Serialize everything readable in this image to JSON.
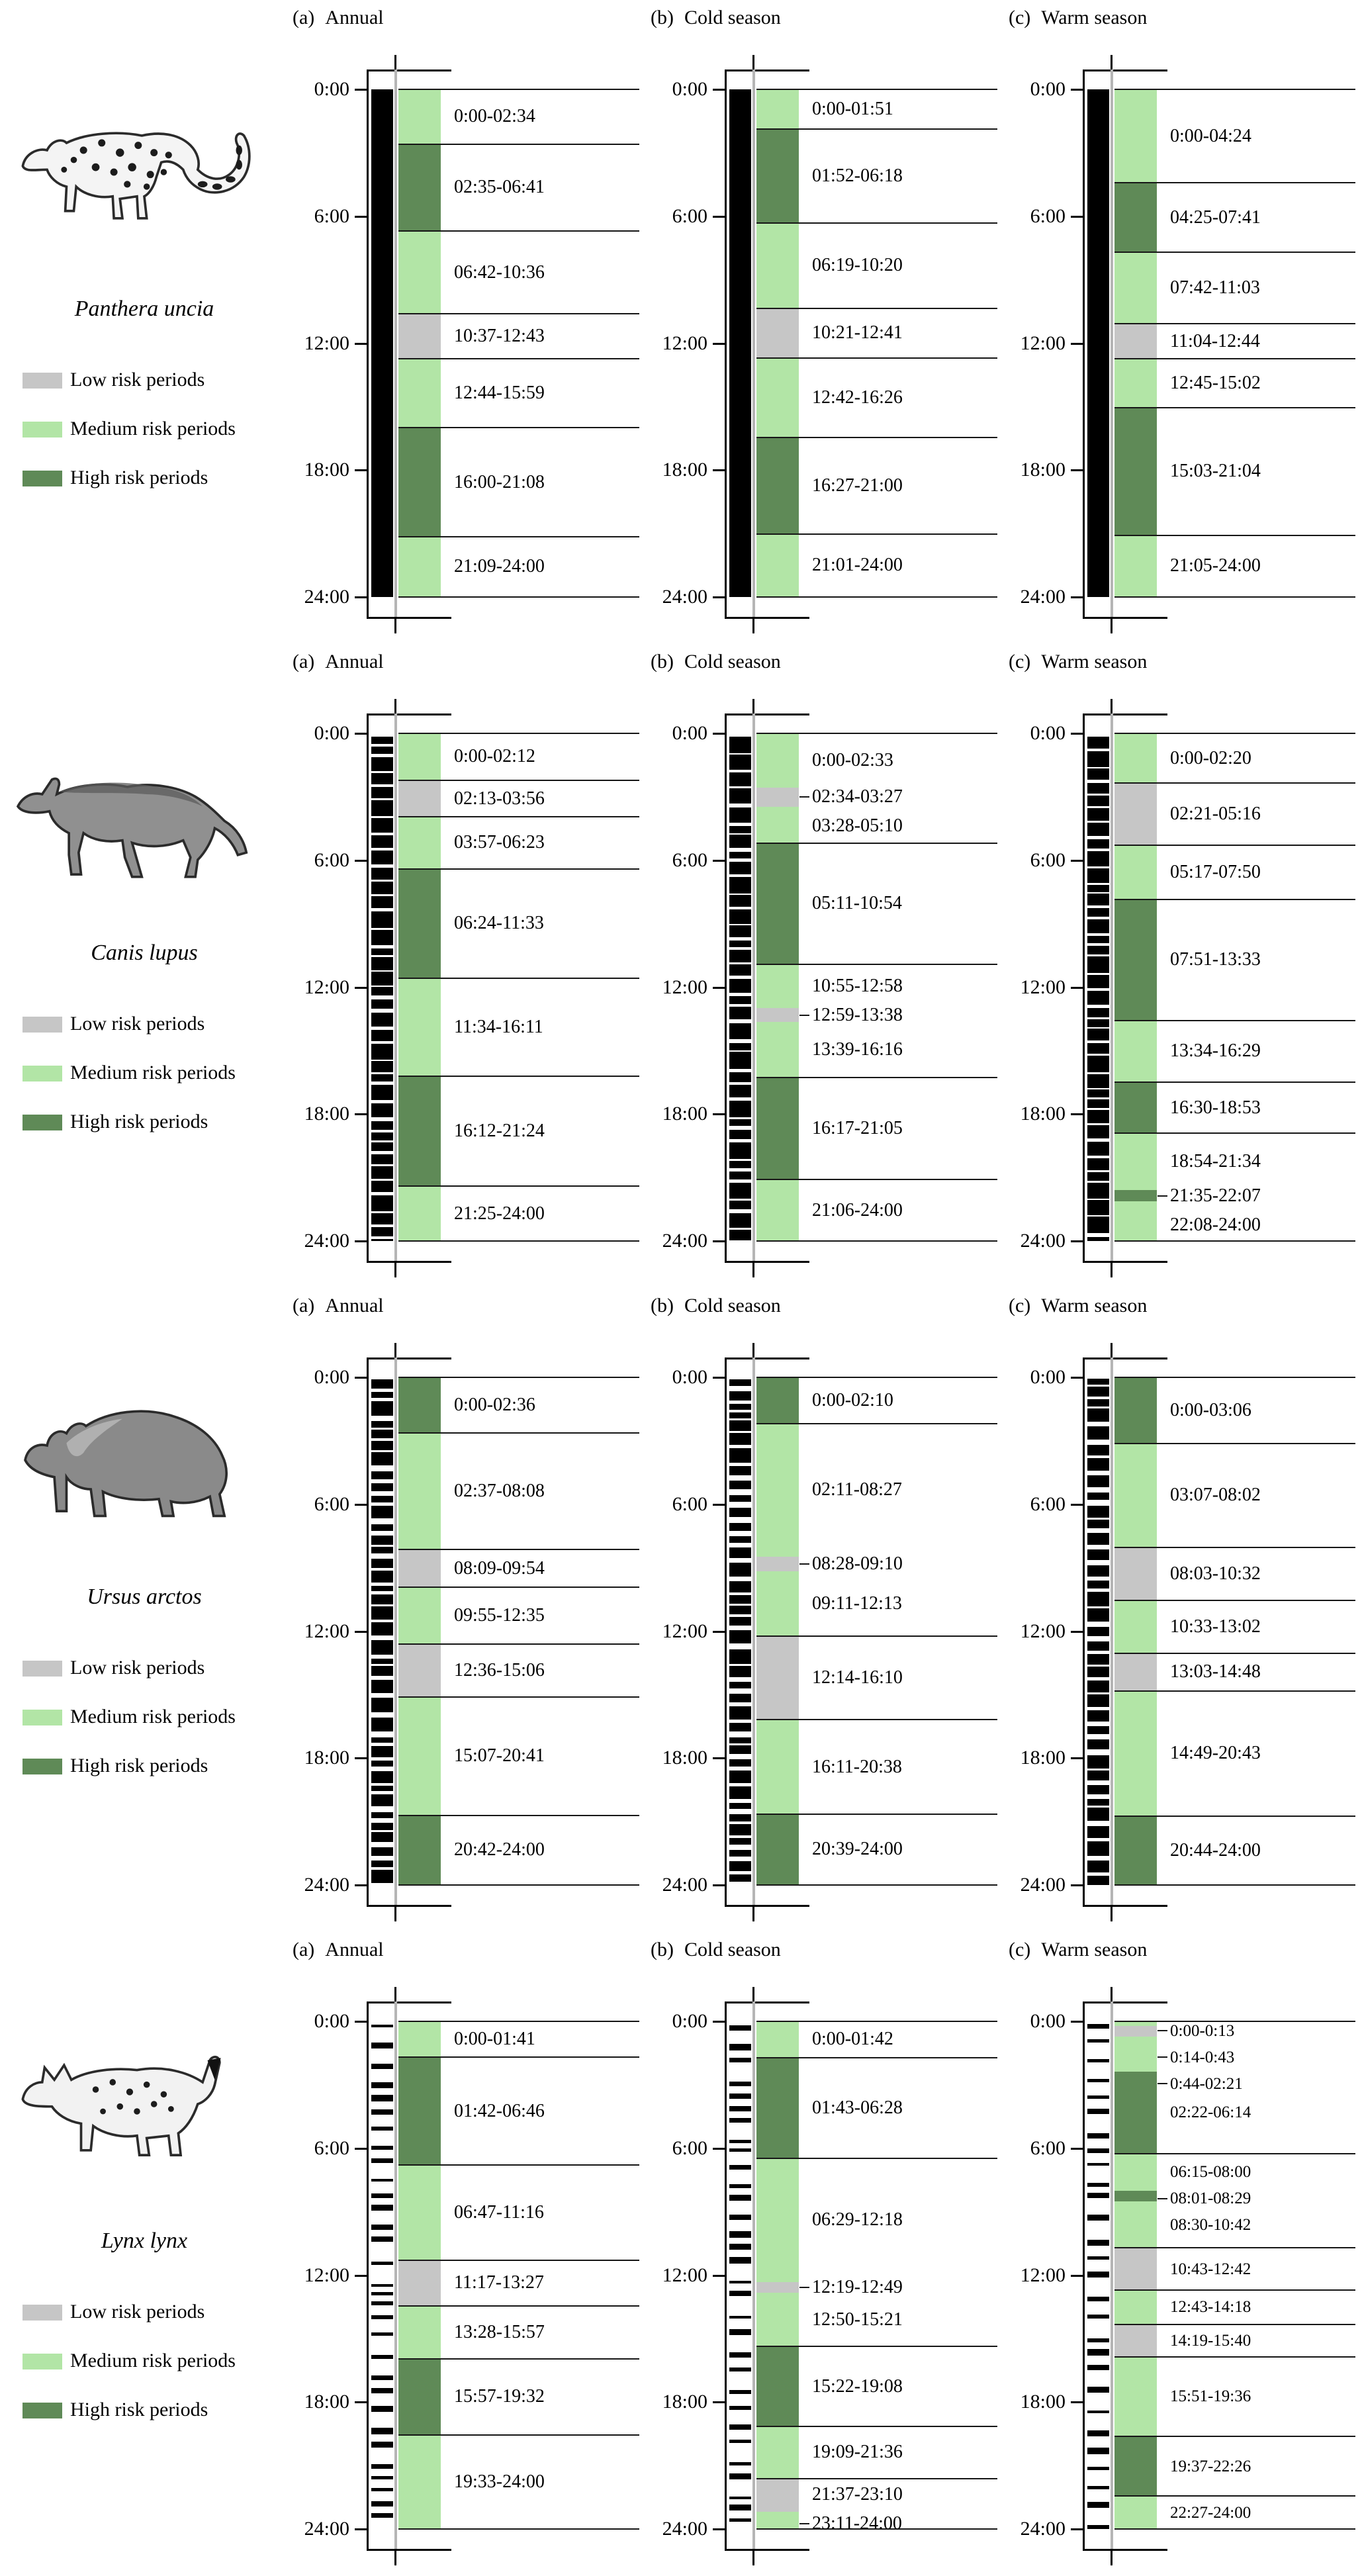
{
  "figure": {
    "background": "#ffffff",
    "text_color": "#000000"
  },
  "legend": {
    "low_label": "Low risk periods",
    "medium_label": "Medium risk periods",
    "high_label": "High risk periods"
  },
  "chart_data": {
    "type": "timeline-risk-bands",
    "time_axis": {
      "range_hours": [
        0,
        24
      ],
      "tick_labels": [
        "0:00",
        "6:00",
        "12:00",
        "18:00",
        "24:00"
      ],
      "tick_hours": [
        0,
        6,
        12,
        18,
        24
      ]
    },
    "risk_levels": [
      {
        "key": "low",
        "label": "Low risk periods",
        "color": "#c6c6c6"
      },
      {
        "key": "medium",
        "label": "Medium risk periods",
        "color": "#b2e5a6"
      },
      {
        "key": "high",
        "label": "High risk periods",
        "color": "#5f8a57"
      }
    ],
    "activity_bar_color": "#000000",
    "species": [
      {
        "name": "Panthera uncia",
        "illustration": "snow-leopard",
        "activity_pattern": {
          "style": "solid",
          "seed": 3
        },
        "panels": [
          {
            "index_label": "(a)",
            "season": "Annual",
            "segments": [
              {
                "label": "0:00-02:34",
                "risk": "medium"
              },
              {
                "label": "02:35-06:41",
                "risk": "high"
              },
              {
                "label": "06:42-10:36",
                "risk": "medium"
              },
              {
                "label": "10:37-12:43",
                "risk": "low"
              },
              {
                "label": "12:44-15:59",
                "risk": "medium"
              },
              {
                "label": "16:00-21:08",
                "risk": "high"
              },
              {
                "label": "21:09-24:00",
                "risk": "medium"
              }
            ]
          },
          {
            "index_label": "(b)",
            "season": "Cold season",
            "segments": [
              {
                "label": "0:00-01:51",
                "risk": "medium"
              },
              {
                "label": "01:52-06:18",
                "risk": "high"
              },
              {
                "label": "06:19-10:20",
                "risk": "medium"
              },
              {
                "label": "10:21-12:41",
                "risk": "low"
              },
              {
                "label": "12:42-16:26",
                "risk": "medium"
              },
              {
                "label": "16:27-21:00",
                "risk": "high"
              },
              {
                "label": "21:01-24:00",
                "risk": "medium"
              }
            ]
          },
          {
            "index_label": "(c)",
            "season": "Warm season",
            "segments": [
              {
                "label": "0:00-04:24",
                "risk": "medium"
              },
              {
                "label": "04:25-07:41",
                "risk": "high"
              },
              {
                "label": "07:42-11:03",
                "risk": "medium"
              },
              {
                "label": "11:04-12:44",
                "risk": "low"
              },
              {
                "label": "12:45-15:02",
                "risk": "medium"
              },
              {
                "label": "15:03-21:04",
                "risk": "high"
              },
              {
                "label": "21:05-24:00",
                "risk": "medium"
              }
            ]
          }
        ]
      },
      {
        "name": "Canis lupus",
        "illustration": "gray-wolf",
        "activity_pattern": {
          "style": "bars",
          "seed": 7,
          "bar": [
            10,
            26
          ],
          "gap": [
            2,
            6
          ]
        },
        "panels": [
          {
            "index_label": "(a)",
            "season": "Annual",
            "segments": [
              {
                "label": "0:00-02:12",
                "risk": "medium"
              },
              {
                "label": "02:13-03:56",
                "risk": "low"
              },
              {
                "label": "03:57-06:23",
                "risk": "medium"
              },
              {
                "label": "06:24-11:33",
                "risk": "high"
              },
              {
                "label": "11:34-16:11",
                "risk": "medium"
              },
              {
                "label": "16:12-21:24",
                "risk": "high"
              },
              {
                "label": "21:25-24:00",
                "risk": "medium"
              }
            ]
          },
          {
            "index_label": "(b)",
            "season": "Cold season",
            "segments": [
              {
                "label": "0:00-02:33",
                "risk": "medium"
              },
              {
                "label": "02:34-03:27",
                "risk": "low"
              },
              {
                "label": "03:28-05:10",
                "risk": "medium"
              },
              {
                "label": "05:11-10:54",
                "risk": "high"
              },
              {
                "label": "10:55-12:58",
                "risk": "medium"
              },
              {
                "label": "12:59-13:38",
                "risk": "low"
              },
              {
                "label": "13:39-16:16",
                "risk": "medium"
              },
              {
                "label": "16:17-21:05",
                "risk": "high"
              },
              {
                "label": "21:06-24:00",
                "risk": "medium"
              }
            ]
          },
          {
            "index_label": "(c)",
            "season": "Warm season",
            "segments": [
              {
                "label": "0:00-02:20",
                "risk": "medium"
              },
              {
                "label": "02:21-05:16",
                "risk": "low"
              },
              {
                "label": "05:17-07:50",
                "risk": "medium"
              },
              {
                "label": "07:51-13:33",
                "risk": "high"
              },
              {
                "label": "13:34-16:29",
                "risk": "medium"
              },
              {
                "label": "16:30-18:53",
                "risk": "high"
              },
              {
                "label": "18:54-21:34",
                "risk": "medium"
              },
              {
                "label": "21:35-22:07",
                "risk": "high"
              },
              {
                "label": "22:08-24:00",
                "risk": "medium"
              }
            ]
          }
        ]
      },
      {
        "name": "Ursus arctos",
        "illustration": "brown-bear",
        "activity_pattern": {
          "style": "bars",
          "seed": 13,
          "bar": [
            8,
            22
          ],
          "gap": [
            3,
            9
          ]
        },
        "panels": [
          {
            "index_label": "(a)",
            "season": "Annual",
            "segments": [
              {
                "label": "0:00-02:36",
                "risk": "high"
              },
              {
                "label": "02:37-08:08",
                "risk": "medium"
              },
              {
                "label": "08:09-09:54",
                "risk": "low"
              },
              {
                "label": "09:55-12:35",
                "risk": "medium"
              },
              {
                "label": "12:36-15:06",
                "risk": "low"
              },
              {
                "label": "15:07-20:41",
                "risk": "medium"
              },
              {
                "label": "20:42-24:00",
                "risk": "high"
              }
            ]
          },
          {
            "index_label": "(b)",
            "season": "Cold season",
            "segments": [
              {
                "label": "0:00-02:10",
                "risk": "high"
              },
              {
                "label": "02:11-08:27",
                "risk": "medium"
              },
              {
                "label": "08:28-09:10",
                "risk": "low"
              },
              {
                "label": "09:11-12:13",
                "risk": "medium"
              },
              {
                "label": "12:14-16:10",
                "risk": "low"
              },
              {
                "label": "16:11-20:38",
                "risk": "medium"
              },
              {
                "label": "20:39-24:00",
                "risk": "high"
              }
            ]
          },
          {
            "index_label": "(c)",
            "season": "Warm season",
            "segments": [
              {
                "label": "0:00-03:06",
                "risk": "high"
              },
              {
                "label": "03:07-08:02",
                "risk": "medium"
              },
              {
                "label": "08:03-10:32",
                "risk": "low"
              },
              {
                "label": "10:33-13:02",
                "risk": "medium"
              },
              {
                "label": "13:03-14:48",
                "risk": "low"
              },
              {
                "label": "14:49-20:43",
                "risk": "medium"
              },
              {
                "label": "20:44-24:00",
                "risk": "high"
              }
            ]
          }
        ]
      },
      {
        "name": "Lynx lynx",
        "illustration": "eurasian-lynx",
        "activity_pattern": {
          "style": "bars",
          "seed": 21,
          "bar": [
            4,
            10
          ],
          "gap": [
            8,
            30
          ]
        },
        "panels": [
          {
            "index_label": "(a)",
            "season": "Annual",
            "segments": [
              {
                "label": "0:00-01:41",
                "risk": "medium"
              },
              {
                "label": "01:42-06:46",
                "risk": "high"
              },
              {
                "label": "06:47-11:16",
                "risk": "medium"
              },
              {
                "label": "11:17-13:27",
                "risk": "low"
              },
              {
                "label": "13:28-15:57",
                "risk": "medium"
              },
              {
                "label": "15:57-19:32",
                "risk": "high"
              },
              {
                "label": "19:33-24:00",
                "risk": "medium"
              }
            ]
          },
          {
            "index_label": "(b)",
            "season": "Cold season",
            "segments": [
              {
                "label": "0:00-01:42",
                "risk": "medium"
              },
              {
                "label": "01:43-06:28",
                "risk": "high"
              },
              {
                "label": "06:29-12:18",
                "risk": "medium"
              },
              {
                "label": "12:19-12:49",
                "risk": "low"
              },
              {
                "label": "12:50-15:21",
                "risk": "medium"
              },
              {
                "label": "15:22-19:08",
                "risk": "high"
              },
              {
                "label": "19:09-21:36",
                "risk": "medium"
              },
              {
                "label": "21:37-23:10",
                "risk": "low"
              },
              {
                "label": "23:11-24:00",
                "risk": "medium"
              }
            ]
          },
          {
            "index_label": "(c)",
            "season": "Warm season",
            "segments": [
              {
                "label": "0:00-0:13",
                "risk": "medium"
              },
              {
                "label": "0:14-0:43",
                "risk": "low"
              },
              {
                "label": "0:44-02:21",
                "risk": "medium"
              },
              {
                "label": "02:22-06:14",
                "risk": "high"
              },
              {
                "label": "06:15-08:00",
                "risk": "medium"
              },
              {
                "label": "08:01-08:29",
                "risk": "high"
              },
              {
                "label": "08:30-10:42",
                "risk": "medium"
              },
              {
                "label": "10:43-12:42",
                "risk": "low"
              },
              {
                "label": "12:43-14:18",
                "risk": "medium"
              },
              {
                "label": "14:19-15:40",
                "risk": "low"
              },
              {
                "label": "15:51-19:36",
                "risk": "medium"
              },
              {
                "label": "19:37-22:26",
                "risk": "high"
              },
              {
                "label": "22:27-24:00",
                "risk": "medium"
              }
            ]
          }
        ]
      }
    ]
  }
}
